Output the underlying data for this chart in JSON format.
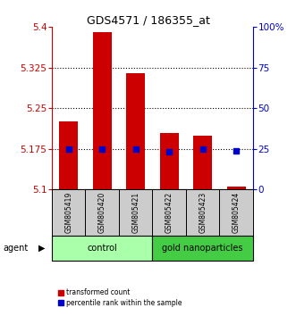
{
  "title": "GDS4571 / 186355_at",
  "categories": [
    "GSM805419",
    "GSM805420",
    "GSM805421",
    "GSM805422",
    "GSM805423",
    "GSM805424"
  ],
  "red_values": [
    5.225,
    5.39,
    5.315,
    5.205,
    5.2,
    5.105
  ],
  "blue_values": [
    5.175,
    5.175,
    5.175,
    5.17,
    5.175,
    5.172
  ],
  "ylim_left": [
    5.1,
    5.4
  ],
  "ylim_right": [
    0,
    100
  ],
  "left_ticks": [
    5.1,
    5.175,
    5.25,
    5.325,
    5.4
  ],
  "right_ticks": [
    0,
    25,
    50,
    75,
    100
  ],
  "right_tick_labels": [
    "0",
    "25",
    "50",
    "75",
    "100%"
  ],
  "hlines": [
    5.175,
    5.25,
    5.325
  ],
  "control_label": "control",
  "gold_label": "gold nanoparticles",
  "agent_label": "agent",
  "legend_red": "transformed count",
  "legend_blue": "percentile rank within the sample",
  "left_axis_color": "#cc0000",
  "right_axis_color": "#0000cc",
  "bar_color": "#cc0000",
  "dot_color": "#0000cc",
  "control_bg": "#aaffaa",
  "gold_bg": "#44cc44",
  "sample_bg": "#cccccc",
  "bar_width": 0.55
}
